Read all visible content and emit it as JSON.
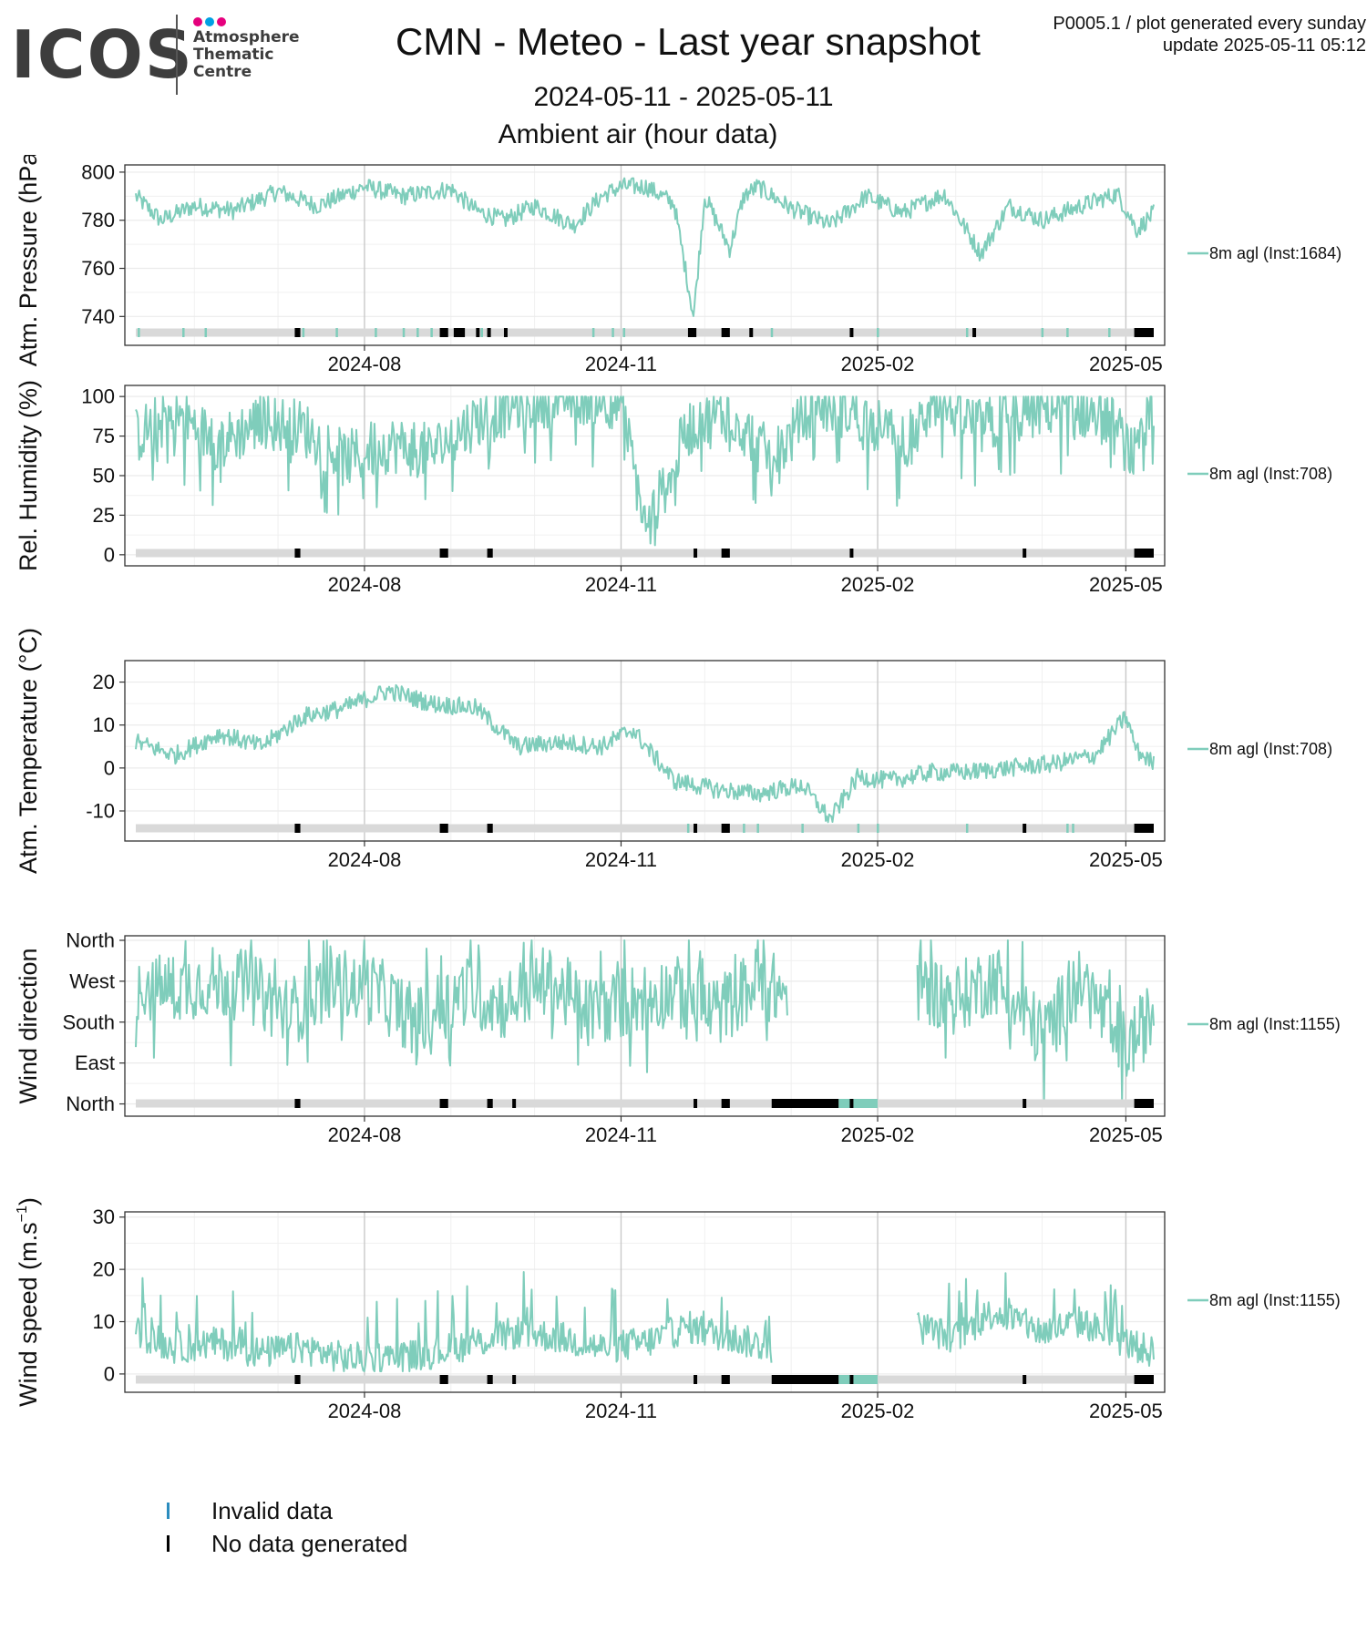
{
  "header": {
    "logo_text": "ICOS",
    "logo_sub": [
      "Atmosphere",
      "Thematic",
      "Centre"
    ],
    "title": "CMN - Meteo - Last year snapshot",
    "date_range": "2024-05-11 - 2025-05-11",
    "subtitle": "Ambient air (hour data)",
    "meta_line1": "P0005.1 / plot generated every sunday",
    "meta_line2": "update  2025-05-11 05:12"
  },
  "colors": {
    "series": "#7fcdbb",
    "invalid": "#2b8cbe",
    "nodata": "#000000",
    "availability_bar": "#d9d9d9",
    "panel_border": "#333333"
  },
  "legend": {
    "invalid_label": "Invalid data",
    "nodata_label": "No data generated"
  },
  "chart_data": [
    {
      "type": "line",
      "ylabel": "Atm. Pressure (hPa)",
      "series_label": "8m agl (Inst:1684)",
      "x_range": [
        "2024-05-11",
        "2025-05-11"
      ],
      "x_ticks": [
        "2024-08",
        "2024-11",
        "2025-02",
        "2025-05"
      ],
      "y_ticks": [
        740,
        760,
        780,
        800
      ],
      "y_tick_labels": [
        "740",
        "760",
        "780",
        "800"
      ],
      "ylim": [
        728,
        803
      ],
      "series": [
        {
          "name": "8m agl (Inst:1684)",
          "x": [
            "2024-05-11",
            "2024-05-20",
            "2024-06-01",
            "2024-06-15",
            "2024-07-01",
            "2024-07-15",
            "2024-08-01",
            "2024-08-15",
            "2024-09-01",
            "2024-09-10",
            "2024-09-20",
            "2024-10-01",
            "2024-10-15",
            "2024-10-25",
            "2024-11-01",
            "2024-11-10",
            "2024-11-20",
            "2024-11-27",
            "2024-12-01",
            "2024-12-10",
            "2024-12-15",
            "2024-12-20",
            "2025-01-01",
            "2025-01-15",
            "2025-01-28",
            "2025-02-10",
            "2025-02-25",
            "2025-03-10",
            "2025-03-20",
            "2025-04-01",
            "2025-04-15",
            "2025-04-28",
            "2025-05-05",
            "2025-05-11"
          ],
          "values": [
            790,
            780,
            786,
            784,
            792,
            786,
            794,
            790,
            793,
            784,
            780,
            786,
            778,
            790,
            794,
            794,
            787,
            740,
            790,
            768,
            790,
            794,
            785,
            778,
            790,
            783,
            791,
            766,
            786,
            780,
            786,
            791,
            776,
            783
          ]
        }
      ],
      "invalid_x": [
        "2024-05-12",
        "2024-05-28",
        "2024-06-05",
        "2024-07-10",
        "2024-07-22",
        "2024-08-05",
        "2024-08-15",
        "2024-08-20",
        "2024-08-25",
        "2024-09-12",
        "2024-10-22",
        "2024-10-29",
        "2024-11-02",
        "2024-12-25",
        "2025-02-01",
        "2025-03-05",
        "2025-04-01",
        "2025-04-10",
        "2025-04-25"
      ],
      "nodata": [
        [
          "2024-07-07",
          "2024-07-09"
        ],
        [
          "2024-08-28",
          "2024-08-31"
        ],
        [
          "2024-09-02",
          "2024-09-06"
        ],
        [
          "2024-09-10",
          "2024-09-11"
        ],
        [
          "2024-09-14",
          "2024-09-15"
        ],
        [
          "2024-09-20",
          "2024-09-21"
        ],
        [
          "2024-11-25",
          "2024-11-28"
        ],
        [
          "2024-12-07",
          "2024-12-10"
        ],
        [
          "2024-12-17",
          "2024-12-18"
        ],
        [
          "2025-01-22",
          "2025-01-23"
        ],
        [
          "2025-03-07",
          "2025-03-08"
        ],
        [
          "2025-05-04",
          "2025-05-11"
        ]
      ]
    },
    {
      "type": "line",
      "ylabel": "Rel. Humidity (%)",
      "series_label": "8m agl (Inst:708)",
      "x_range": [
        "2024-05-11",
        "2025-05-11"
      ],
      "x_ticks": [
        "2024-08",
        "2024-11",
        "2025-02",
        "2025-05"
      ],
      "y_ticks": [
        0,
        25,
        50,
        75,
        100
      ],
      "y_tick_labels": [
        "0",
        "25",
        "50",
        "75",
        "100"
      ],
      "ylim": [
        -7,
        107
      ],
      "series": [
        {
          "name": "8m agl (Inst:708)",
          "x": [
            "2024-05-11",
            "2024-05-25",
            "2024-06-10",
            "2024-06-25",
            "2024-07-10",
            "2024-07-25",
            "2024-08-10",
            "2024-08-25",
            "2024-09-10",
            "2024-09-25",
            "2024-10-10",
            "2024-10-25",
            "2024-11-01",
            "2024-11-10",
            "2024-11-25",
            "2024-12-10",
            "2024-12-25",
            "2025-01-10",
            "2025-01-25",
            "2025-02-10",
            "2025-02-25",
            "2025-03-10",
            "2025-03-25",
            "2025-04-10",
            "2025-04-25",
            "2025-05-05",
            "2025-05-11"
          ],
          "values": [
            75,
            90,
            70,
            85,
            80,
            60,
            70,
            65,
            85,
            95,
            100,
            100,
            95,
            15,
            80,
            90,
            60,
            95,
            90,
            70,
            95,
            80,
            90,
            95,
            85,
            60,
            95
          ]
        }
      ],
      "invalid_x": [],
      "nodata": [
        [
          "2024-07-07",
          "2024-07-09"
        ],
        [
          "2024-08-28",
          "2024-08-31"
        ],
        [
          "2024-09-14",
          "2024-09-16"
        ],
        [
          "2024-11-27",
          "2024-11-28"
        ],
        [
          "2024-12-07",
          "2024-12-10"
        ],
        [
          "2025-01-22",
          "2025-01-23"
        ],
        [
          "2025-03-25",
          "2025-03-26"
        ],
        [
          "2025-05-04",
          "2025-05-11"
        ]
      ]
    },
    {
      "type": "line",
      "ylabel": "Atm. Temperature (°C)",
      "series_label": "8m agl (Inst:708)",
      "x_range": [
        "2024-05-11",
        "2025-05-11"
      ],
      "x_ticks": [
        "2024-08",
        "2024-11",
        "2025-02",
        "2025-05"
      ],
      "y_ticks": [
        -10,
        0,
        10,
        20
      ],
      "y_tick_labels": [
        "-10",
        "0",
        "10",
        "20"
      ],
      "ylim": [
        -17,
        25
      ],
      "series": [
        {
          "name": "8m agl (Inst:708)",
          "x": [
            "2024-05-11",
            "2024-05-25",
            "2024-06-10",
            "2024-06-25",
            "2024-07-10",
            "2024-07-25",
            "2024-08-01",
            "2024-08-10",
            "2024-08-25",
            "2024-09-10",
            "2024-09-25",
            "2024-10-10",
            "2024-10-25",
            "2024-11-05",
            "2024-11-20",
            "2024-12-05",
            "2024-12-20",
            "2025-01-05",
            "2025-01-15",
            "2025-01-25",
            "2025-02-05",
            "2025-02-20",
            "2025-03-05",
            "2025-03-20",
            "2025-04-05",
            "2025-04-20",
            "2025-05-01",
            "2025-05-05",
            "2025-05-11"
          ],
          "values": [
            6,
            3,
            8,
            5,
            12,
            14,
            16,
            18,
            15,
            14,
            5,
            6,
            5,
            9,
            -3,
            -5,
            -6,
            -4,
            -12,
            -2,
            -3,
            -1,
            -1,
            0,
            1,
            3,
            12,
            4,
            1
          ]
        }
      ],
      "invalid_x": [
        "2024-11-25",
        "2024-12-15",
        "2024-12-20",
        "2025-01-05",
        "2025-01-25",
        "2025-02-01",
        "2025-03-05",
        "2025-04-10",
        "2025-04-12"
      ],
      "nodata": [
        [
          "2024-07-07",
          "2024-07-09"
        ],
        [
          "2024-08-28",
          "2024-08-31"
        ],
        [
          "2024-09-14",
          "2024-09-16"
        ],
        [
          "2024-11-27",
          "2024-11-28"
        ],
        [
          "2024-12-07",
          "2024-12-10"
        ],
        [
          "2025-03-25",
          "2025-03-26"
        ],
        [
          "2025-05-04",
          "2025-05-11"
        ]
      ]
    },
    {
      "type": "line",
      "ylabel": "Wind direction",
      "series_label": "8m agl (Inst:1155)",
      "x_range": [
        "2024-05-11",
        "2025-05-11"
      ],
      "x_ticks": [
        "2024-08",
        "2024-11",
        "2025-02",
        "2025-05"
      ],
      "y_ticks": [
        0,
        90,
        180,
        270,
        360
      ],
      "y_tick_labels": [
        "North",
        "East",
        "South",
        "West",
        "North"
      ],
      "ylim": [
        -27,
        370
      ],
      "series": [
        {
          "name": "8m agl (Inst:1155)",
          "x": [
            "2024-05-11",
            "2024-05-20",
            "2024-06-05",
            "2024-06-20",
            "2024-07-05",
            "2024-07-20",
            "2024-08-05",
            "2024-08-20",
            "2024-09-05",
            "2024-09-20",
            "2024-10-05",
            "2024-10-20",
            "2024-11-05",
            "2024-11-20",
            "2024-12-05",
            "2024-12-20",
            "2024-12-31",
            "2025-02-01",
            "2025-02-15",
            "2025-03-01",
            "2025-03-15",
            "2025-04-01",
            "2025-04-15",
            "2025-05-01",
            "2025-05-11"
          ],
          "values": [
            270,
            250,
            270,
            260,
            200,
            270,
            250,
            180,
            250,
            220,
            270,
            200,
            230,
            250,
            200,
            270,
            240,
            null,
            260,
            230,
            280,
            150,
            270,
            120,
            200
          ]
        }
      ],
      "invalid_x": [],
      "nodata": [
        [
          "2024-07-07",
          "2024-07-09"
        ],
        [
          "2024-08-28",
          "2024-08-31"
        ],
        [
          "2024-09-14",
          "2024-09-16"
        ],
        [
          "2024-09-23",
          "2024-09-24"
        ],
        [
          "2024-11-27",
          "2024-11-28"
        ],
        [
          "2024-12-07",
          "2024-12-10"
        ],
        [
          "2024-12-25",
          "2025-01-18"
        ],
        [
          "2025-01-22",
          "2025-01-23"
        ],
        [
          "2025-03-25",
          "2025-03-26"
        ],
        [
          "2025-05-04",
          "2025-05-11"
        ]
      ],
      "invalid_ranges": [
        [
          "2025-01-18",
          "2025-02-01"
        ]
      ]
    },
    {
      "type": "line",
      "ylabel": "Wind speed (m.s-1)",
      "ylabel_sup": "−1",
      "ylabel_main": "Wind speed (m.s",
      "ylabel_close": ")",
      "series_label": "8m agl (Inst:1155)",
      "x_range": [
        "2024-05-11",
        "2025-05-11"
      ],
      "x_ticks": [
        "2024-08",
        "2024-11",
        "2025-02",
        "2025-05"
      ],
      "y_ticks": [
        0,
        10,
        20,
        30
      ],
      "y_tick_labels": [
        "0",
        "10",
        "20",
        "30"
      ],
      "ylim": [
        -3.5,
        31
      ],
      "series": [
        {
          "name": "8m agl (Inst:1155)",
          "x": [
            "2024-05-11",
            "2024-05-25",
            "2024-06-10",
            "2024-06-25",
            "2024-07-10",
            "2024-07-25",
            "2024-08-10",
            "2024-08-25",
            "2024-09-10",
            "2024-09-25",
            "2024-10-10",
            "2024-10-25",
            "2024-11-10",
            "2024-11-25",
            "2024-12-10",
            "2024-12-25",
            "2025-02-01",
            "2025-02-15",
            "2025-03-01",
            "2025-03-15",
            "2025-04-01",
            "2025-04-15",
            "2025-05-01",
            "2025-05-11"
          ],
          "values": [
            8,
            5,
            6,
            4,
            5,
            3,
            3,
            4,
            6,
            8,
            7,
            5,
            6,
            9,
            7,
            5,
            null,
            9,
            7,
            12,
            8,
            10,
            6,
            4
          ]
        }
      ],
      "invalid_x": [],
      "nodata": [
        [
          "2024-07-07",
          "2024-07-09"
        ],
        [
          "2024-08-28",
          "2024-08-31"
        ],
        [
          "2024-09-14",
          "2024-09-16"
        ],
        [
          "2024-09-23",
          "2024-09-24"
        ],
        [
          "2024-11-27",
          "2024-11-28"
        ],
        [
          "2024-12-07",
          "2024-12-10"
        ],
        [
          "2024-12-25",
          "2025-01-18"
        ],
        [
          "2025-01-22",
          "2025-01-23"
        ],
        [
          "2025-03-25",
          "2025-03-26"
        ],
        [
          "2025-05-04",
          "2025-05-11"
        ]
      ],
      "invalid_ranges": [
        [
          "2025-01-18",
          "2025-02-01"
        ]
      ]
    }
  ]
}
